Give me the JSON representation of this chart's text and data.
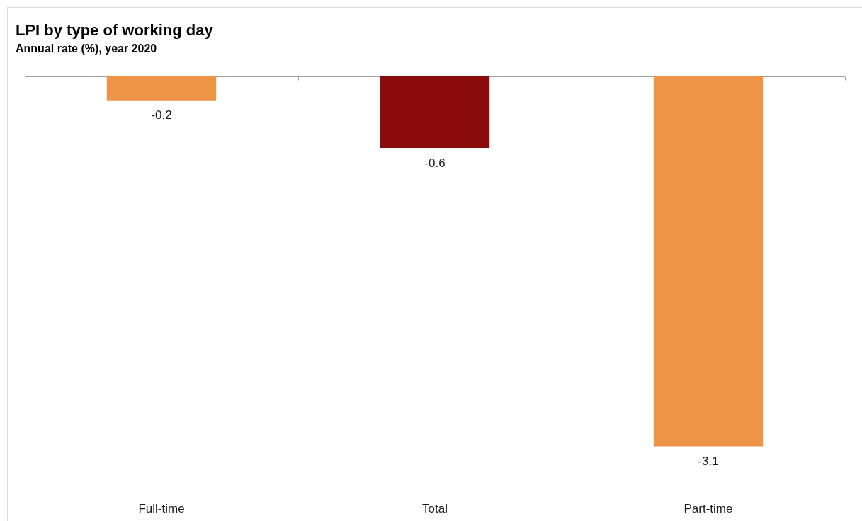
{
  "chart_data": {
    "type": "bar",
    "title": "LPI by type of working day",
    "subtitle": "Annual rate (%), year 2020",
    "categories": [
      "Full-time",
      "Total",
      "Part-time"
    ],
    "values": [
      -0.2,
      -0.6,
      -3.1
    ],
    "colors": [
      "#ed9447",
      "#8a0b0b",
      "#ed9447"
    ],
    "data_labels": true,
    "tick_labels": "x"
  }
}
